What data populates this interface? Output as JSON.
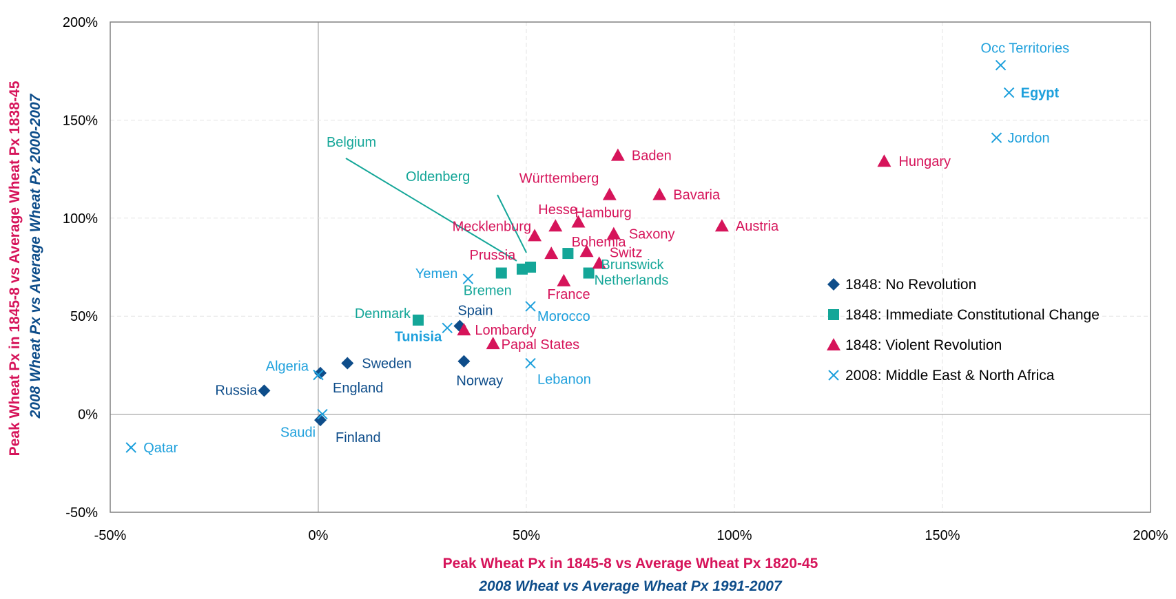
{
  "chart_data": {
    "type": "scatter",
    "x_axis": {
      "min": -0.5,
      "max": 2.0,
      "ticks": [
        -0.5,
        0,
        0.5,
        1.0,
        1.5,
        2.0
      ],
      "tick_labels": [
        "-50%",
        "0%",
        "50%",
        "100%",
        "150%",
        "200%"
      ],
      "label_line1": "Peak Wheat Px in 1845-8 vs Average Wheat Px 1820-45",
      "label_line2": "2008 Wheat vs Average Wheat Px 1991-2007"
    },
    "y_axis": {
      "min": -0.5,
      "max": 2.0,
      "ticks": [
        -0.5,
        0,
        0.5,
        1.0,
        1.5,
        2.0
      ],
      "tick_labels": [
        "-50%",
        "0%",
        "50%",
        "100%",
        "150%",
        "200%"
      ],
      "label_line1": "Peak Wheat Px in 1845-8 vs Average Wheat Px 1838-45",
      "label_line2": "2008 Wheat Px vs Average Wheat Px 2000-2007"
    },
    "grid": true,
    "legend_position": "right",
    "series": [
      {
        "name": "1848: No Revolution",
        "marker": "diamond",
        "color": "#0e4d8a",
        "points": [
          {
            "label": "Russia",
            "x": -0.13,
            "y": 0.12
          },
          {
            "label": "England",
            "x": 0.005,
            "y": 0.21
          },
          {
            "label": "Finland",
            "x": 0.005,
            "y": -0.03
          },
          {
            "label": "Sweden",
            "x": 0.07,
            "y": 0.26
          },
          {
            "label": "Spain",
            "x": 0.34,
            "y": 0.45
          },
          {
            "label": "Norway",
            "x": 0.35,
            "y": 0.27
          }
        ]
      },
      {
        "name": "1848: Immediate Constitutional Change",
        "marker": "square",
        "color": "#14a698",
        "points": [
          {
            "label": "Denmark",
            "x": 0.24,
            "y": 0.48
          },
          {
            "label": "Bremen",
            "x": 0.44,
            "y": 0.72
          },
          {
            "label": "Belgium",
            "x": 0.49,
            "y": 0.74
          },
          {
            "label": "Oldenberg",
            "x": 0.51,
            "y": 0.75
          },
          {
            "label": "Brunswick",
            "x": 0.6,
            "y": 0.82
          },
          {
            "label": "Netherlands",
            "x": 0.65,
            "y": 0.72
          }
        ]
      },
      {
        "name": "1848: Violent Revolution",
        "marker": "triangle",
        "color": "#d6145a",
        "points": [
          {
            "label": "Lombardy",
            "x": 0.35,
            "y": 0.43
          },
          {
            "label": "Papal States",
            "x": 0.42,
            "y": 0.36
          },
          {
            "label": "Mecklenburg",
            "x": 0.52,
            "y": 0.91
          },
          {
            "label": "Prussia",
            "x": 0.56,
            "y": 0.82
          },
          {
            "label": "Hesse",
            "x": 0.57,
            "y": 0.96
          },
          {
            "label": "France",
            "x": 0.59,
            "y": 0.68
          },
          {
            "label": "Hamburg",
            "x": 0.625,
            "y": 0.98
          },
          {
            "label": "Bohemia",
            "x": 0.645,
            "y": 0.83
          },
          {
            "label": "Switz",
            "x": 0.675,
            "y": 0.77
          },
          {
            "label": "Württemberg",
            "x": 0.7,
            "y": 1.12
          },
          {
            "label": "Saxony",
            "x": 0.71,
            "y": 0.92
          },
          {
            "label": "Baden",
            "x": 0.72,
            "y": 1.32
          },
          {
            "label": "Bavaria",
            "x": 0.82,
            "y": 1.12
          },
          {
            "label": "Austria",
            "x": 0.97,
            "y": 0.96
          },
          {
            "label": "Hungary",
            "x": 1.36,
            "y": 1.29
          }
        ]
      },
      {
        "name": "2008: Middle East & North Africa",
        "marker": "x",
        "color": "#1ea0dc",
        "points": [
          {
            "label": "Qatar",
            "x": -0.45,
            "y": -0.17
          },
          {
            "label": "Algeria",
            "x": 0.0,
            "y": 0.2
          },
          {
            "label": "Saudi",
            "x": 0.01,
            "y": 0.0
          },
          {
            "label": "Tunisia",
            "x": 0.31,
            "y": 0.44
          },
          {
            "label": "Yemen",
            "x": 0.36,
            "y": 0.69
          },
          {
            "label": "Morocco",
            "x": 0.51,
            "y": 0.55
          },
          {
            "label": "Lebanon",
            "x": 0.51,
            "y": 0.26
          },
          {
            "label": "Jordon",
            "x": 1.63,
            "y": 1.41
          },
          {
            "label": "Occ Territories",
            "x": 1.64,
            "y": 1.78
          },
          {
            "label": "Egypt",
            "x": 1.66,
            "y": 1.64
          }
        ]
      }
    ]
  }
}
